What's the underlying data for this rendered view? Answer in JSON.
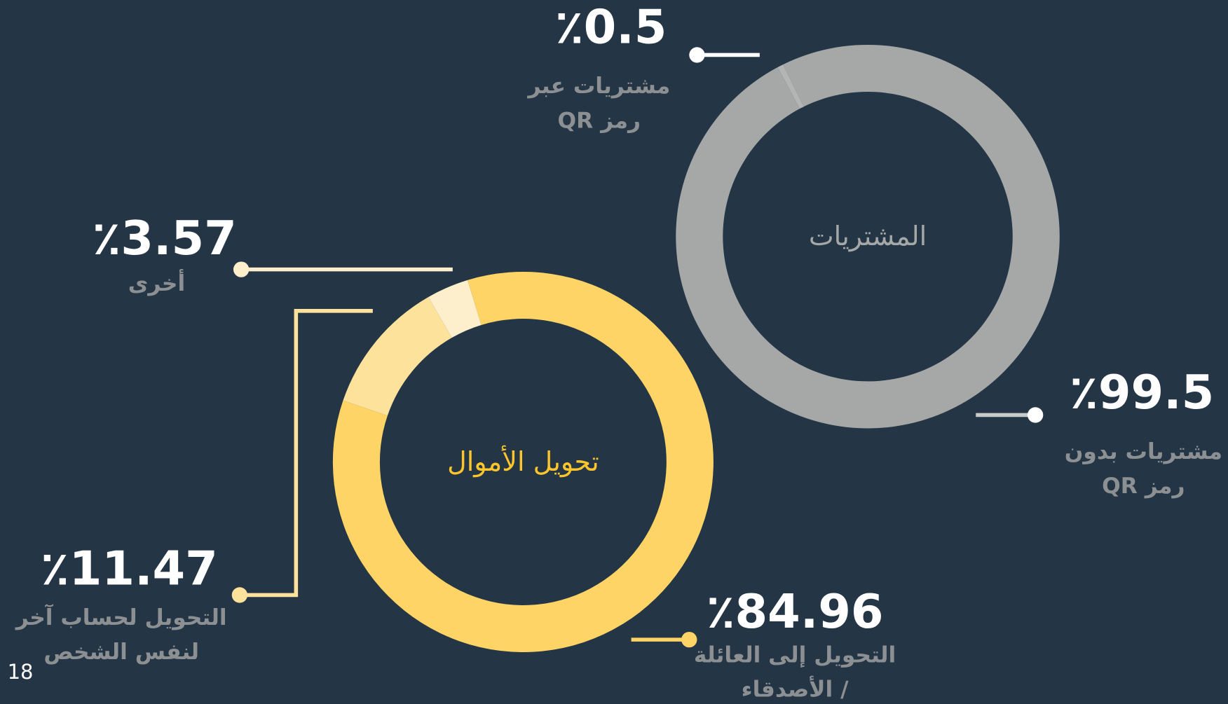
{
  "chart_data": [
    {
      "type": "donut",
      "title": "المشتريات",
      "categories": [
        "مشتريات عبر رمز QR",
        "مشتريات بدون رمز QR"
      ],
      "values": [
        0.5,
        99.5
      ],
      "value_labels": [
        "٪0.5",
        "٪99.5"
      ],
      "colors": [
        "#b3b5b5",
        "#a6a8a8"
      ],
      "title_color": "#a6a8a8"
    },
    {
      "type": "donut",
      "title": "تحويل الأموال",
      "categories": [
        "التحويل إلى العائلة / الأصدقاء",
        "التحويل لحساب آخر لنفس الشخص",
        "أخرى"
      ],
      "values": [
        84.96,
        11.47,
        3.57
      ],
      "value_labels": [
        "٪84.96",
        "٪11.47",
        "٪3.57"
      ],
      "colors": [
        "#fed466",
        "#fde29b",
        "#fdefcb"
      ],
      "title_color": "#fdc52c"
    }
  ],
  "page_number": "18"
}
